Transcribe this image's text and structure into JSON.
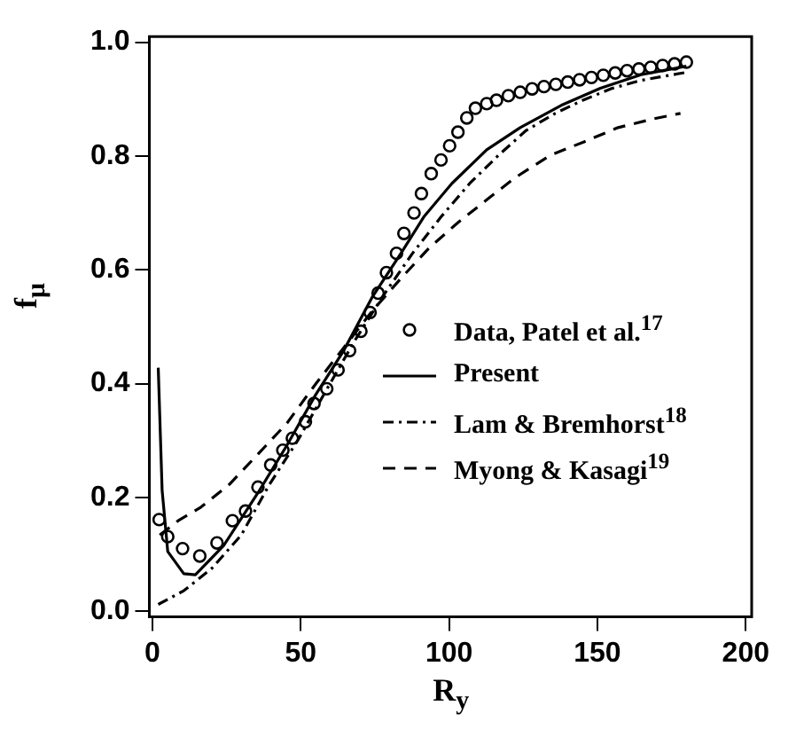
{
  "chart_data": {
    "type": "line",
    "xlabel": "R$_{y}$",
    "ylabel": "f$_{μ}$",
    "xlim": [
      -1,
      202
    ],
    "ylim": [
      -0.01,
      1.01
    ],
    "xticks": [
      0,
      50,
      100,
      150,
      200
    ],
    "yticks": [
      {
        "value": 0,
        "label": "0.0"
      },
      {
        "value": 0.2,
        "label": "0.2"
      },
      {
        "value": 0.4,
        "label": "0.4"
      },
      {
        "value": 0.6,
        "label": "0.6"
      },
      {
        "value": 0.8,
        "label": "0.8"
      },
      {
        "value": 1,
        "label": "1.0"
      }
    ],
    "grid": false,
    "legend": "bottom right",
    "series": [
      {
        "name": "Data, Patel et al.$^{17}$",
        "type": "scatter",
        "marker": "circle",
        "color": "#000000",
        "x": [
          2.3,
          5.2,
          10.2,
          16,
          21.8,
          27,
          31.4,
          35.6,
          39.9,
          44,
          47.2,
          51.6,
          54.5,
          58.8,
          62.6,
          66.5,
          70.3,
          73.4,
          76.1,
          78.9,
          82.3,
          84.8,
          88.2,
          90.7,
          94,
          97.3,
          100.2,
          103,
          106,
          108.9,
          112.7,
          116,
          120,
          124,
          128,
          132,
          136,
          140,
          144,
          148,
          152,
          156,
          160,
          164,
          168,
          172,
          176,
          180
        ],
        "values": [
          0.161,
          0.131,
          0.11,
          0.097,
          0.12,
          0.159,
          0.176,
          0.218,
          0.257,
          0.283,
          0.304,
          0.333,
          0.365,
          0.391,
          0.424,
          0.458,
          0.492,
          0.525,
          0.559,
          0.595,
          0.629,
          0.664,
          0.7,
          0.734,
          0.769,
          0.793,
          0.818,
          0.842,
          0.867,
          0.884,
          0.892,
          0.898,
          0.906,
          0.912,
          0.918,
          0.922,
          0.926,
          0.93,
          0.934,
          0.938,
          0.942,
          0.946,
          0.95,
          0.953,
          0.956,
          0.959,
          0.962,
          0.965
        ]
      },
      {
        "name": "Present",
        "marker": "none",
        "line_style": "solid",
        "color": "#000000",
        "x": [
          2,
          3.3,
          5.2,
          10.6,
          14.5,
          24,
          35.6,
          45.3,
          55,
          64.5,
          74,
          83.8,
          91.5,
          101,
          112.7,
          124,
          137.8,
          151,
          164.7,
          180
        ],
        "values": [
          0.428,
          0.213,
          0.105,
          0.066,
          0.064,
          0.115,
          0.208,
          0.291,
          0.38,
          0.458,
          0.551,
          0.629,
          0.693,
          0.752,
          0.811,
          0.85,
          0.889,
          0.919,
          0.943,
          0.958
        ]
      },
      {
        "name": "Lam & Bremhorst$^{18}$",
        "marker": "none",
        "line_style": "dashdot",
        "color": "#000000",
        "x": [
          2,
          10.6,
          20,
          30,
          39.5,
          49,
          58.8,
          68.4,
          78,
          87.7,
          97.3,
          107,
          116.6,
          126,
          135.8,
          145.5,
          155,
          164.7,
          181
        ],
        "values": [
          0.012,
          0.036,
          0.075,
          0.134,
          0.223,
          0.3,
          0.39,
          0.477,
          0.556,
          0.629,
          0.693,
          0.752,
          0.801,
          0.845,
          0.875,
          0.899,
          0.919,
          0.933,
          0.948
        ]
      },
      {
        "name": "Myong & Kasagi$^{19}$",
        "marker": "none",
        "line_style": "dashed",
        "color": "#000000",
        "x": [
          2.5,
          8.7,
          16.4,
          26,
          35.6,
          45.3,
          55,
          64.5,
          74,
          83.8,
          93.4,
          103,
          112.7,
          122.3,
          134,
          145.5,
          157,
          168.6,
          178
        ],
        "values": [
          0.134,
          0.159,
          0.183,
          0.223,
          0.276,
          0.33,
          0.399,
          0.463,
          0.527,
          0.585,
          0.639,
          0.683,
          0.723,
          0.762,
          0.801,
          0.825,
          0.85,
          0.865,
          0.875
        ]
      }
    ]
  }
}
